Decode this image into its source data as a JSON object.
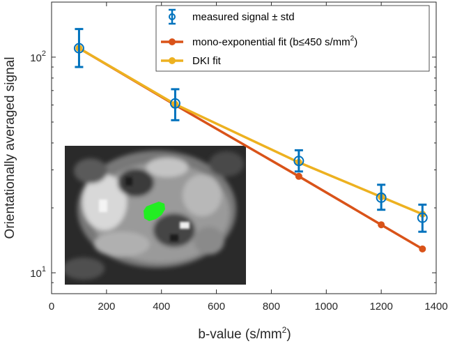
{
  "chart_data": {
    "type": "line",
    "title": "",
    "xlabel": "b-value (s/mm",
    "xlabel_sup": "2",
    "xlabel_end": ")",
    "ylabel": "Orientationally averaged signal",
    "xlim": [
      0,
      1400
    ],
    "ylim": [
      8,
      180
    ],
    "yscale": "log",
    "x_ticks": [
      0,
      200,
      400,
      600,
      800,
      1000,
      1200,
      1400
    ],
    "x_tick_labels": [
      "0",
      "200",
      "400",
      "600",
      "800",
      "1000",
      "1200",
      "1400"
    ],
    "y_ticks": [
      {
        "value": 10,
        "base": "10",
        "exp": "1"
      },
      {
        "value": 100,
        "base": "10",
        "exp": "2"
      }
    ],
    "grid": false,
    "legend_position": "top-right",
    "series": [
      {
        "name": "measured signal ± std",
        "kind": "errorbar",
        "color": "#0072BD",
        "x": [
          100,
          450,
          900,
          1200,
          1350
        ],
        "y": [
          110,
          61,
          33,
          22.3,
          18
        ],
        "err_low": [
          20,
          10,
          3.5,
          2.7,
          2.5
        ],
        "err_high": [
          25,
          10,
          4,
          3.3,
          2.7
        ]
      },
      {
        "name": "mono-exponential fit (b≤450 s/mm",
        "name_sup": "2",
        "name_end": ")",
        "kind": "line",
        "color": "#D95319",
        "x": [
          100,
          450,
          900,
          1200,
          1350
        ],
        "y": [
          110,
          60,
          28,
          16.7,
          12.9
        ]
      },
      {
        "name": "DKI fit",
        "kind": "line",
        "color": "#EDB120",
        "x": [
          100,
          450,
          900,
          1200,
          1350
        ],
        "y": [
          110,
          60.5,
          32.5,
          22.5,
          18.7
        ]
      }
    ],
    "inset": {
      "description_name": "mri-inset",
      "highlight_color": "#22ee22"
    }
  }
}
